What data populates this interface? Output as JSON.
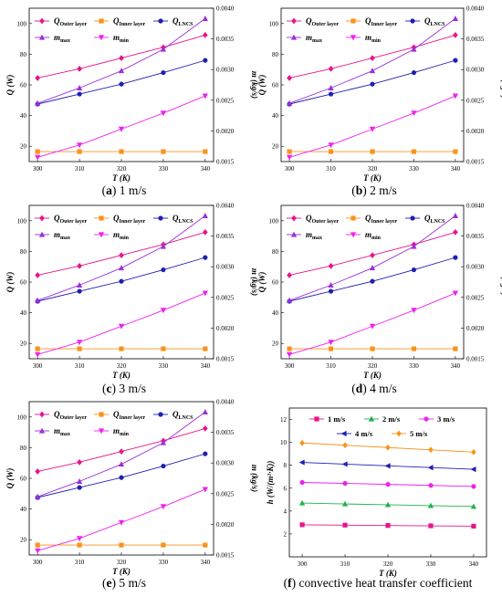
{
  "figure": {
    "captions": [
      {
        "letter": "a",
        "text": " 1 m/s"
      },
      {
        "letter": "b",
        "text": " 2 m/s"
      },
      {
        "letter": "c",
        "text": " 3 m/s"
      },
      {
        "letter": "d",
        "text": " 4 m/s"
      },
      {
        "letter": "e",
        "text": " 5 m/s"
      },
      {
        "letter": "f",
        "text": " convective heat transfer coefficient"
      }
    ]
  },
  "chart_data": [
    {
      "type": "line",
      "panel": "a",
      "x": [
        300,
        310,
        320,
        330,
        340
      ],
      "xlim": [
        298,
        342
      ],
      "xticks": [
        300,
        310,
        320,
        330,
        340
      ],
      "xlabel": "T (K)",
      "ylabel": "Q (W)",
      "y2label": "m (kg/s)",
      "ylim": [
        10,
        110
      ],
      "yticks": [
        20,
        40,
        60,
        80,
        100
      ],
      "y2lim": [
        0.0015,
        0.004
      ],
      "y2ticks": [
        "0.0015",
        "0.0020",
        "0.0025",
        "0.0030",
        "0.0035",
        "0.0040"
      ],
      "legend": "top-left",
      "series": [
        {
          "name": "Q_Outer layer",
          "axis": "left",
          "color": "#e6158c",
          "marker": "diamond",
          "values": [
            64.5,
            70.5,
            77.5,
            84.5,
            92.5
          ]
        },
        {
          "name": "Q_Inner layer",
          "axis": "left",
          "color": "#f7941d",
          "marker": "square",
          "values": [
            16.5,
            16.5,
            16.5,
            16.5,
            16.5
          ]
        },
        {
          "name": "Q_LNCS",
          "axis": "left",
          "color": "#1f1fb4",
          "marker": "circle",
          "values": [
            47.5,
            54.0,
            60.5,
            68.0,
            76.0
          ]
        },
        {
          "name": "m_max",
          "axis": "right",
          "color": "#9b30d9",
          "marker": "triangle-up",
          "values": [
            0.00245,
            0.0027,
            0.00298,
            0.00333,
            0.00383
          ]
        },
        {
          "name": "m_min",
          "axis": "right",
          "color": "#ee22ee",
          "marker": "triangle-down",
          "values": [
            0.00157,
            0.00177,
            0.00203,
            0.00229,
            0.00257
          ]
        }
      ]
    },
    {
      "type": "line",
      "panel": "b",
      "x": [
        300,
        310,
        320,
        330,
        340
      ],
      "xlim": [
        298,
        342
      ],
      "xticks": [
        300,
        310,
        320,
        330,
        340
      ],
      "xlabel": "T (K)",
      "ylabel": "Q (W)",
      "y2label": "m (kg/s)",
      "ylim": [
        10,
        110
      ],
      "yticks": [
        20,
        40,
        60,
        80,
        100
      ],
      "y2lim": [
        0.0015,
        0.004
      ],
      "y2ticks": [
        "0.0015",
        "0.0020",
        "0.0025",
        "0.0030",
        "0.0035",
        "0.0040"
      ],
      "legend": "top-left",
      "series": [
        {
          "name": "Q_Outer layer",
          "axis": "left",
          "color": "#e6158c",
          "marker": "diamond",
          "values": [
            64.5,
            70.5,
            77.5,
            84.5,
            92.5
          ]
        },
        {
          "name": "Q_Inner layer",
          "axis": "left",
          "color": "#f7941d",
          "marker": "square",
          "values": [
            16.5,
            16.5,
            16.5,
            16.5,
            16.5
          ]
        },
        {
          "name": "Q_LNCS",
          "axis": "left",
          "color": "#1f1fb4",
          "marker": "circle",
          "values": [
            47.5,
            54.0,
            60.5,
            68.0,
            76.0
          ]
        },
        {
          "name": "m_max",
          "axis": "right",
          "color": "#9b30d9",
          "marker": "triangle-up",
          "values": [
            0.00245,
            0.0027,
            0.00298,
            0.00333,
            0.00383
          ]
        },
        {
          "name": "m_min",
          "axis": "right",
          "color": "#ee22ee",
          "marker": "triangle-down",
          "values": [
            0.00157,
            0.00177,
            0.00203,
            0.00229,
            0.00257
          ]
        }
      ]
    },
    {
      "type": "line",
      "panel": "c",
      "x": [
        300,
        310,
        320,
        330,
        340
      ],
      "xlim": [
        298,
        342
      ],
      "xticks": [
        300,
        310,
        320,
        330,
        340
      ],
      "xlabel": "T (K)",
      "ylabel": "Q (W)",
      "y2label": "m (kg/s)",
      "ylim": [
        10,
        110
      ],
      "yticks": [
        20,
        40,
        60,
        80,
        100
      ],
      "y2lim": [
        0.0015,
        0.004
      ],
      "y2ticks": [
        "0.0015",
        "0.0020",
        "0.0025",
        "0.0030",
        "0.0035",
        "0.0040"
      ],
      "legend": "top-left",
      "series": [
        {
          "name": "Q_Outer layer",
          "axis": "left",
          "color": "#e6158c",
          "marker": "diamond",
          "values": [
            64.5,
            70.5,
            77.5,
            84.5,
            92.5
          ]
        },
        {
          "name": "Q_Inner layer",
          "axis": "left",
          "color": "#f7941d",
          "marker": "square",
          "values": [
            16.5,
            16.5,
            16.5,
            16.5,
            16.5
          ]
        },
        {
          "name": "Q_LNCS",
          "axis": "left",
          "color": "#1f1fb4",
          "marker": "circle",
          "values": [
            47.5,
            54.0,
            60.5,
            68.0,
            76.0
          ]
        },
        {
          "name": "m_max",
          "axis": "right",
          "color": "#9b30d9",
          "marker": "triangle-up",
          "values": [
            0.00245,
            0.0027,
            0.00298,
            0.00333,
            0.00383
          ]
        },
        {
          "name": "m_min",
          "axis": "right",
          "color": "#ee22ee",
          "marker": "triangle-down",
          "values": [
            0.00157,
            0.00177,
            0.00203,
            0.00229,
            0.00257
          ]
        }
      ]
    },
    {
      "type": "line",
      "panel": "d",
      "x": [
        300,
        310,
        320,
        330,
        340
      ],
      "xlim": [
        298,
        342
      ],
      "xticks": [
        300,
        310,
        320,
        330,
        340
      ],
      "xlabel": "T (K)",
      "ylabel": "Q (W)",
      "y2label": "m (kg/s)",
      "ylim": [
        10,
        110
      ],
      "yticks": [
        20,
        40,
        60,
        80,
        100
      ],
      "y2lim": [
        0.0015,
        0.004
      ],
      "y2ticks": [
        "0.0015",
        "0.0020",
        "0.0025",
        "0.0030",
        "0.0035",
        "0.0040"
      ],
      "legend": "top-left",
      "series": [
        {
          "name": "Q_Outer layer",
          "axis": "left",
          "color": "#e6158c",
          "marker": "diamond",
          "values": [
            64.5,
            70.5,
            77.5,
            84.5,
            92.5
          ]
        },
        {
          "name": "Q_Inner layer",
          "axis": "left",
          "color": "#f7941d",
          "marker": "square",
          "values": [
            16.5,
            16.5,
            16.5,
            16.5,
            16.5
          ]
        },
        {
          "name": "Q_LNCS",
          "axis": "left",
          "color": "#1f1fb4",
          "marker": "circle",
          "values": [
            47.5,
            54.0,
            60.5,
            68.0,
            76.0
          ]
        },
        {
          "name": "m_max",
          "axis": "right",
          "color": "#9b30d9",
          "marker": "triangle-up",
          "values": [
            0.00245,
            0.0027,
            0.00298,
            0.00333,
            0.00383
          ]
        },
        {
          "name": "m_min",
          "axis": "right",
          "color": "#ee22ee",
          "marker": "triangle-down",
          "values": [
            0.00157,
            0.00177,
            0.00203,
            0.00229,
            0.00257
          ]
        }
      ]
    },
    {
      "type": "line",
      "panel": "e",
      "x": [
        300,
        310,
        320,
        330,
        340
      ],
      "xlim": [
        298,
        342
      ],
      "xticks": [
        300,
        310,
        320,
        330,
        340
      ],
      "xlabel": "T (K)",
      "ylabel": "Q (W)",
      "y2label": "m (kg/s)",
      "ylim": [
        10,
        110
      ],
      "yticks": [
        20,
        40,
        60,
        80,
        100
      ],
      "y2lim": [
        0.0015,
        0.004
      ],
      "y2ticks": [
        "0.0015",
        "0.0020",
        "0.0025",
        "0.0030",
        "0.0035",
        "0.0040"
      ],
      "legend": "top-left",
      "series": [
        {
          "name": "Q_Outer layer",
          "axis": "left",
          "color": "#e6158c",
          "marker": "diamond",
          "values": [
            64.5,
            70.5,
            77.5,
            84.5,
            92.5
          ]
        },
        {
          "name": "Q_Inner layer",
          "axis": "left",
          "color": "#f7941d",
          "marker": "square",
          "values": [
            16.5,
            16.5,
            16.5,
            16.5,
            16.5
          ]
        },
        {
          "name": "Q_LNCS",
          "axis": "left",
          "color": "#1f1fb4",
          "marker": "circle",
          "values": [
            47.5,
            54.0,
            60.5,
            68.0,
            76.0
          ]
        },
        {
          "name": "m_max",
          "axis": "right",
          "color": "#9b30d9",
          "marker": "triangle-up",
          "values": [
            0.00245,
            0.0027,
            0.00298,
            0.00333,
            0.00383
          ]
        },
        {
          "name": "m_min",
          "axis": "right",
          "color": "#ee22ee",
          "marker": "triangle-down",
          "values": [
            0.00157,
            0.00177,
            0.00203,
            0.00229,
            0.00257
          ]
        }
      ]
    },
    {
      "type": "line",
      "panel": "f",
      "x": [
        300,
        310,
        320,
        330,
        340
      ],
      "xlim": [
        297,
        343
      ],
      "xticks": [
        300,
        310,
        320,
        330,
        340
      ],
      "xlabel": "T (K)",
      "ylabel": "h (W/(m²·K))",
      "ylim": [
        0,
        13
      ],
      "yticks": [
        2,
        4,
        6,
        8,
        10,
        12
      ],
      "legend": "top",
      "series": [
        {
          "name": "1 m/s",
          "color": "#e6158c",
          "marker": "square",
          "values": [
            2.8,
            2.77,
            2.74,
            2.71,
            2.68
          ]
        },
        {
          "name": "2 m/s",
          "color": "#22b14c",
          "marker": "triangle-up",
          "values": [
            4.7,
            4.62,
            4.55,
            4.47,
            4.4
          ]
        },
        {
          "name": "3 m/s",
          "color": "#ee22ee",
          "marker": "circle",
          "values": [
            6.5,
            6.42,
            6.33,
            6.24,
            6.15
          ]
        },
        {
          "name": "4 m/s",
          "color": "#1f1fb4",
          "marker": "triangle-left",
          "values": [
            8.25,
            8.1,
            7.95,
            7.8,
            7.65
          ]
        },
        {
          "name": "5 m/s",
          "color": "#f7941d",
          "marker": "diamond",
          "values": [
            9.95,
            9.75,
            9.55,
            9.35,
            9.15
          ]
        }
      ]
    }
  ]
}
